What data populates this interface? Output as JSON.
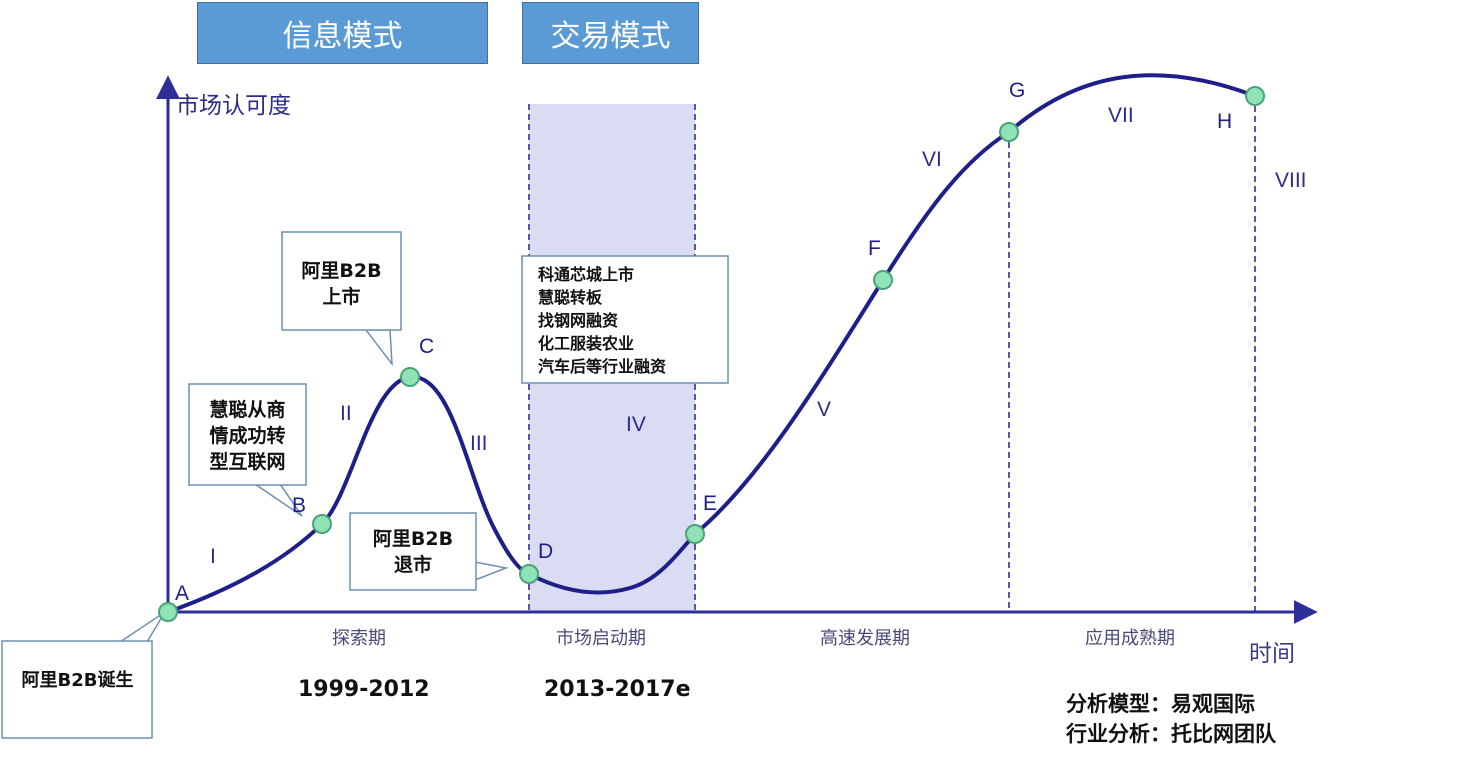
{
  "headers": {
    "info_mode": "信息模式",
    "trade_mode": "交易模式"
  },
  "axes": {
    "y_label": "市场认可度",
    "x_label": "时间"
  },
  "stages": [
    "探索期",
    "市场启动期",
    "高速发展期",
    "应用成熟期"
  ],
  "years": [
    "1999-2012",
    "2013-2017e"
  ],
  "points": [
    "A",
    "B",
    "C",
    "D",
    "E",
    "F",
    "G",
    "H"
  ],
  "segments": [
    "I",
    "II",
    "III",
    "IV",
    "V",
    "VI",
    "VII",
    "VIII"
  ],
  "callouts": {
    "birth": "阿里B2B诞生",
    "huicong_line1": "慧聪从商",
    "huicong_line2": "情成功转",
    "huicong_line3": "型互联网",
    "listed_line1": "阿里B2B",
    "listed_line2": "上市",
    "delist_line1": "阿里B2B",
    "delist_line2": "退市",
    "events": [
      "科通芯城上市",
      "慧聪转板",
      "找钢网融资",
      "化工服装农业",
      "汽车后等行业融资"
    ]
  },
  "footer": {
    "line1": "分析模型：易观国际",
    "line2": "行业分析：托比网团队"
  },
  "colors": {
    "header_fill": "#5b9bd5",
    "curve": "#1f1f8c",
    "axis": "#2e2e9a",
    "node_fill": "#8fe3b4",
    "node_stroke": "#4aa37a",
    "shade": "#d9dcf2",
    "callout_border": "#6f8fb0"
  }
}
